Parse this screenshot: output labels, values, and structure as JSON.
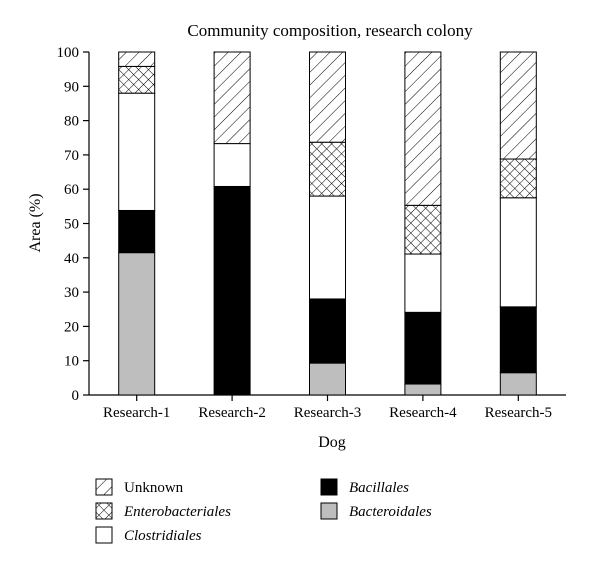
{
  "chart_data": {
    "type": "bar",
    "stacked": true,
    "title": "Community composition, research colony",
    "xlabel": "Dog",
    "ylabel": "Area (%)",
    "ylim": [
      0,
      100
    ],
    "yticks": [
      0,
      10,
      20,
      30,
      40,
      50,
      60,
      70,
      80,
      90,
      100
    ],
    "categories": [
      "Research-1",
      "Research-2",
      "Research-3",
      "Research-4",
      "Research-5"
    ],
    "series": [
      {
        "name": "Bacteroidales",
        "fill": "#bebebe",
        "italic": true,
        "values": [
          41.5,
          0,
          9.3,
          3.2,
          6.5
        ]
      },
      {
        "name": "Bacillales",
        "fill": "#000000",
        "italic": true,
        "values": [
          12.3,
          60.8,
          18.7,
          20.9,
          19.2
        ]
      },
      {
        "name": "Clostridiales",
        "fill": "#ffffff",
        "italic": true,
        "values": [
          34.2,
          12.5,
          30.0,
          17.0,
          31.8
        ]
      },
      {
        "name": "Enterobacteriales",
        "fill": "crosshatch",
        "italic": true,
        "values": [
          7.8,
          0,
          15.7,
          14.2,
          11.3
        ]
      },
      {
        "name": "Unknown",
        "fill": "diagonal",
        "italic": false,
        "values": [
          4.2,
          26.7,
          26.3,
          44.7,
          31.2
        ]
      }
    ],
    "legend": {
      "placement": "bottom",
      "rows": [
        [
          "Unknown",
          "Bacillales"
        ],
        [
          "Enterobacteriales",
          "Bacteroidales"
        ],
        [
          "Clostridiales"
        ]
      ]
    },
    "grid": false
  }
}
